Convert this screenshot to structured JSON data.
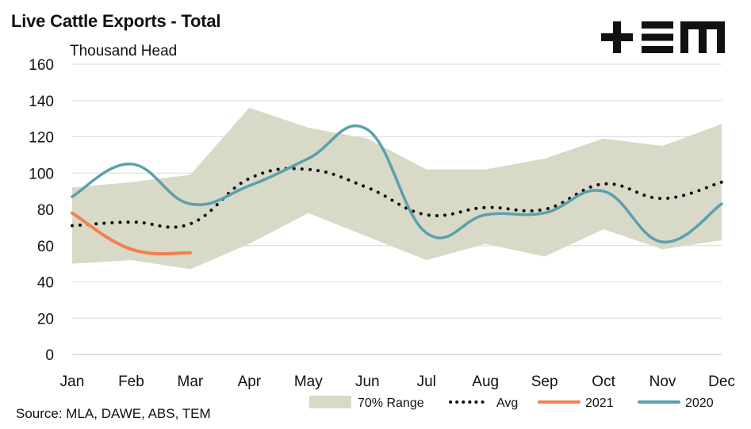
{
  "title": "Live Cattle Exports - Total",
  "source": "Source: MLA, DAWE, ABS, TEM",
  "logo": {
    "icon": "tem-logo",
    "text": "+EM"
  },
  "colors": {
    "range": "#d9d9c7",
    "avg": "#111111",
    "s2021": "#f2804e",
    "s2020": "#5ba0ac",
    "grid": "#d9d9d9"
  },
  "chart_data": {
    "type": "line",
    "ylabel": "Thousand Head",
    "categories": [
      "Jan",
      "Feb",
      "Mar",
      "Apr",
      "May",
      "Jun",
      "Jul",
      "Aug",
      "Sep",
      "Oct",
      "Nov",
      "Dec"
    ],
    "ylim": [
      0,
      160
    ],
    "yticks": [
      0,
      20,
      40,
      60,
      80,
      100,
      120,
      140,
      160
    ],
    "grid": true,
    "legend_position": "bottom",
    "range": {
      "name": "70% Range",
      "upper": [
        92,
        95,
        99,
        136,
        125,
        119,
        102,
        102,
        108,
        119,
        115,
        127
      ],
      "lower": [
        50,
        52,
        47,
        61,
        78,
        65,
        52,
        61,
        54,
        69,
        58,
        63
      ]
    },
    "series": [
      {
        "name": "Avg",
        "style": "dotted",
        "values": [
          71,
          73,
          72,
          97,
          102,
          92,
          77,
          81,
          80,
          94,
          86,
          95
        ]
      },
      {
        "name": "2021",
        "style": "solid",
        "values": [
          78,
          58,
          56,
          null,
          null,
          null,
          null,
          null,
          null,
          null,
          null,
          null
        ]
      },
      {
        "name": "2020",
        "style": "solid",
        "values": [
          87,
          105,
          83,
          93,
          108,
          124,
          67,
          77,
          78,
          90,
          62,
          83
        ]
      }
    ]
  }
}
